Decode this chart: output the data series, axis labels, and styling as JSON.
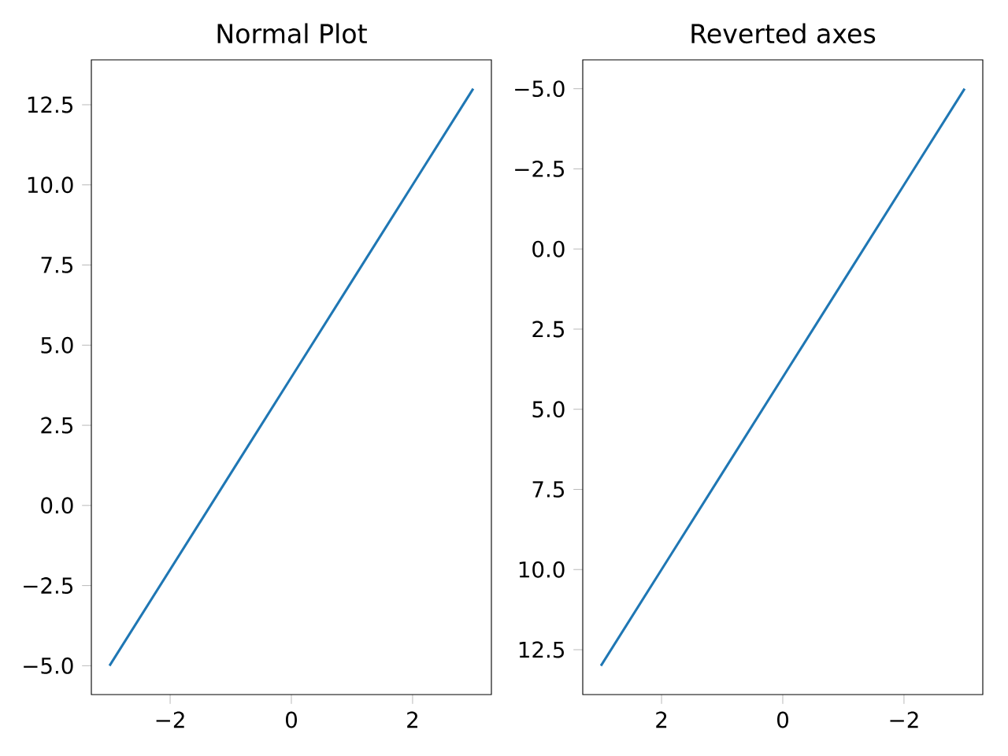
{
  "chart_data": [
    {
      "type": "line",
      "title": "Normal Plot",
      "x": [
        -3,
        -2,
        -1,
        0,
        1,
        2,
        3
      ],
      "series": [
        {
          "color": "#1f77b4",
          "values": [
            -5,
            -2,
            1,
            4,
            7,
            10,
            13
          ]
        }
      ],
      "xlim": [
        -3.3,
        3.3
      ],
      "ylim": [
        -5.9,
        13.9
      ],
      "xticks": [
        {
          "value": -2,
          "label": "−2"
        },
        0,
        2
      ],
      "yticks": [
        {
          "value": -5,
          "label": "−5.0"
        },
        {
          "value": -2.5,
          "label": "−2.5"
        },
        {
          "value": 0,
          "label": "0.0"
        },
        2.5,
        {
          "value": 5,
          "label": "5.0"
        },
        7.5,
        {
          "value": 10,
          "label": "10.0"
        },
        12.5
      ]
    },
    {
      "type": "line",
      "title": "Reverted axes",
      "x": [
        -3,
        -2,
        -1,
        0,
        1,
        2,
        3
      ],
      "series": [
        {
          "color": "#1f77b4",
          "values": [
            -5,
            -2,
            1,
            4,
            7,
            10,
            13
          ]
        }
      ],
      "xlim": [
        3.3,
        -3.3
      ],
      "ylim": [
        13.9,
        -5.9
      ],
      "xticks": [
        2,
        0,
        {
          "value": -2,
          "label": "−2"
        }
      ],
      "yticks": [
        {
          "value": -5,
          "label": "−5.0"
        },
        {
          "value": -2.5,
          "label": "−2.5"
        },
        {
          "value": 0,
          "label": "0.0"
        },
        2.5,
        {
          "value": 5,
          "label": "5.0"
        },
        7.5,
        {
          "value": 10,
          "label": "10.0"
        },
        12.5
      ]
    }
  ]
}
